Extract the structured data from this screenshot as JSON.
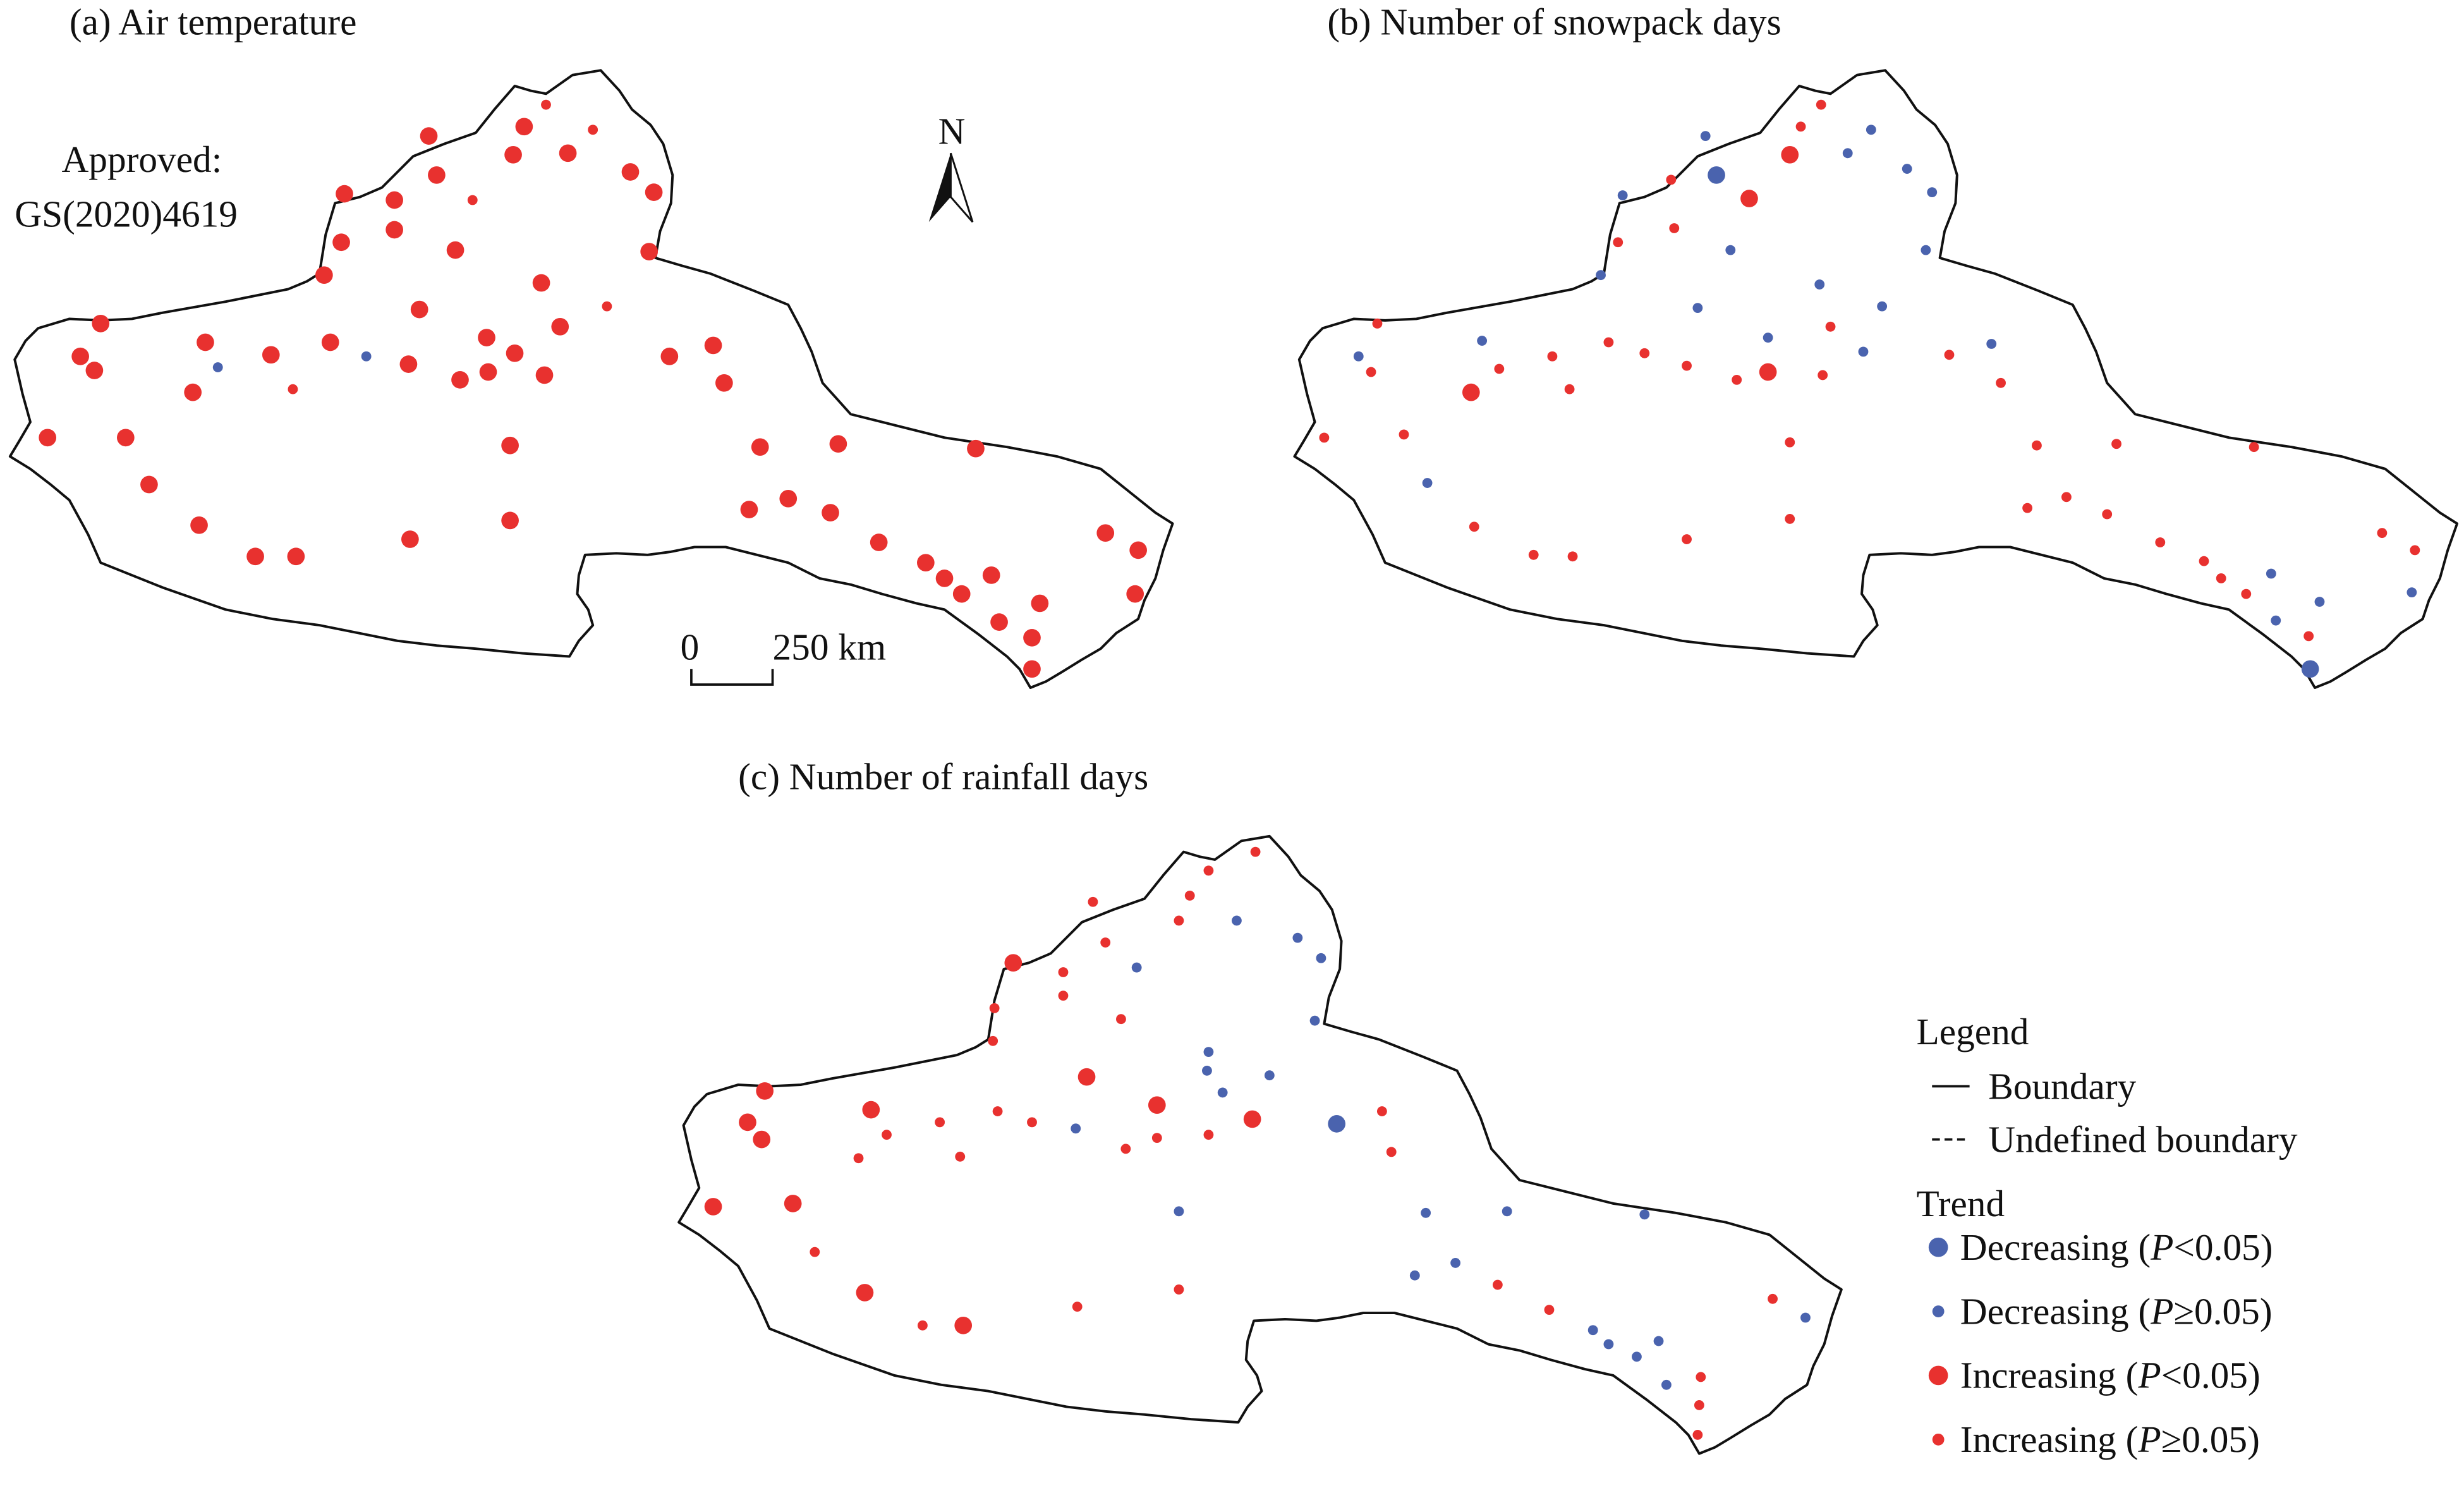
{
  "panels": [
    {
      "title": "(a) Air temperature"
    },
    {
      "title": "(b) Number of snowpack days"
    },
    {
      "title": "(c) Number of rainfall days"
    }
  ],
  "approval": [
    "Approved:",
    "GS(2020)4619"
  ],
  "north": "N",
  "scale_bar": {
    "start": "0",
    "end": "250 km"
  },
  "legend": {
    "title": "Legend",
    "boundary": [
      "Boundary",
      "Undefined boundary"
    ],
    "trend_title": "Trend",
    "trend": [
      {
        "text": "Decreasing (",
        "italic": "P",
        "condition": "<0.05)"
      },
      {
        "text": "Decreasing (",
        "italic": "P",
        "condition": "≥0.05)"
      },
      {
        "text": "Increasing (",
        "italic": "P",
        "condition": "<0.05)"
      },
      {
        "text": "Increasing (",
        "italic": "P",
        "condition": "≥0.05)"
      }
    ]
  }
}
